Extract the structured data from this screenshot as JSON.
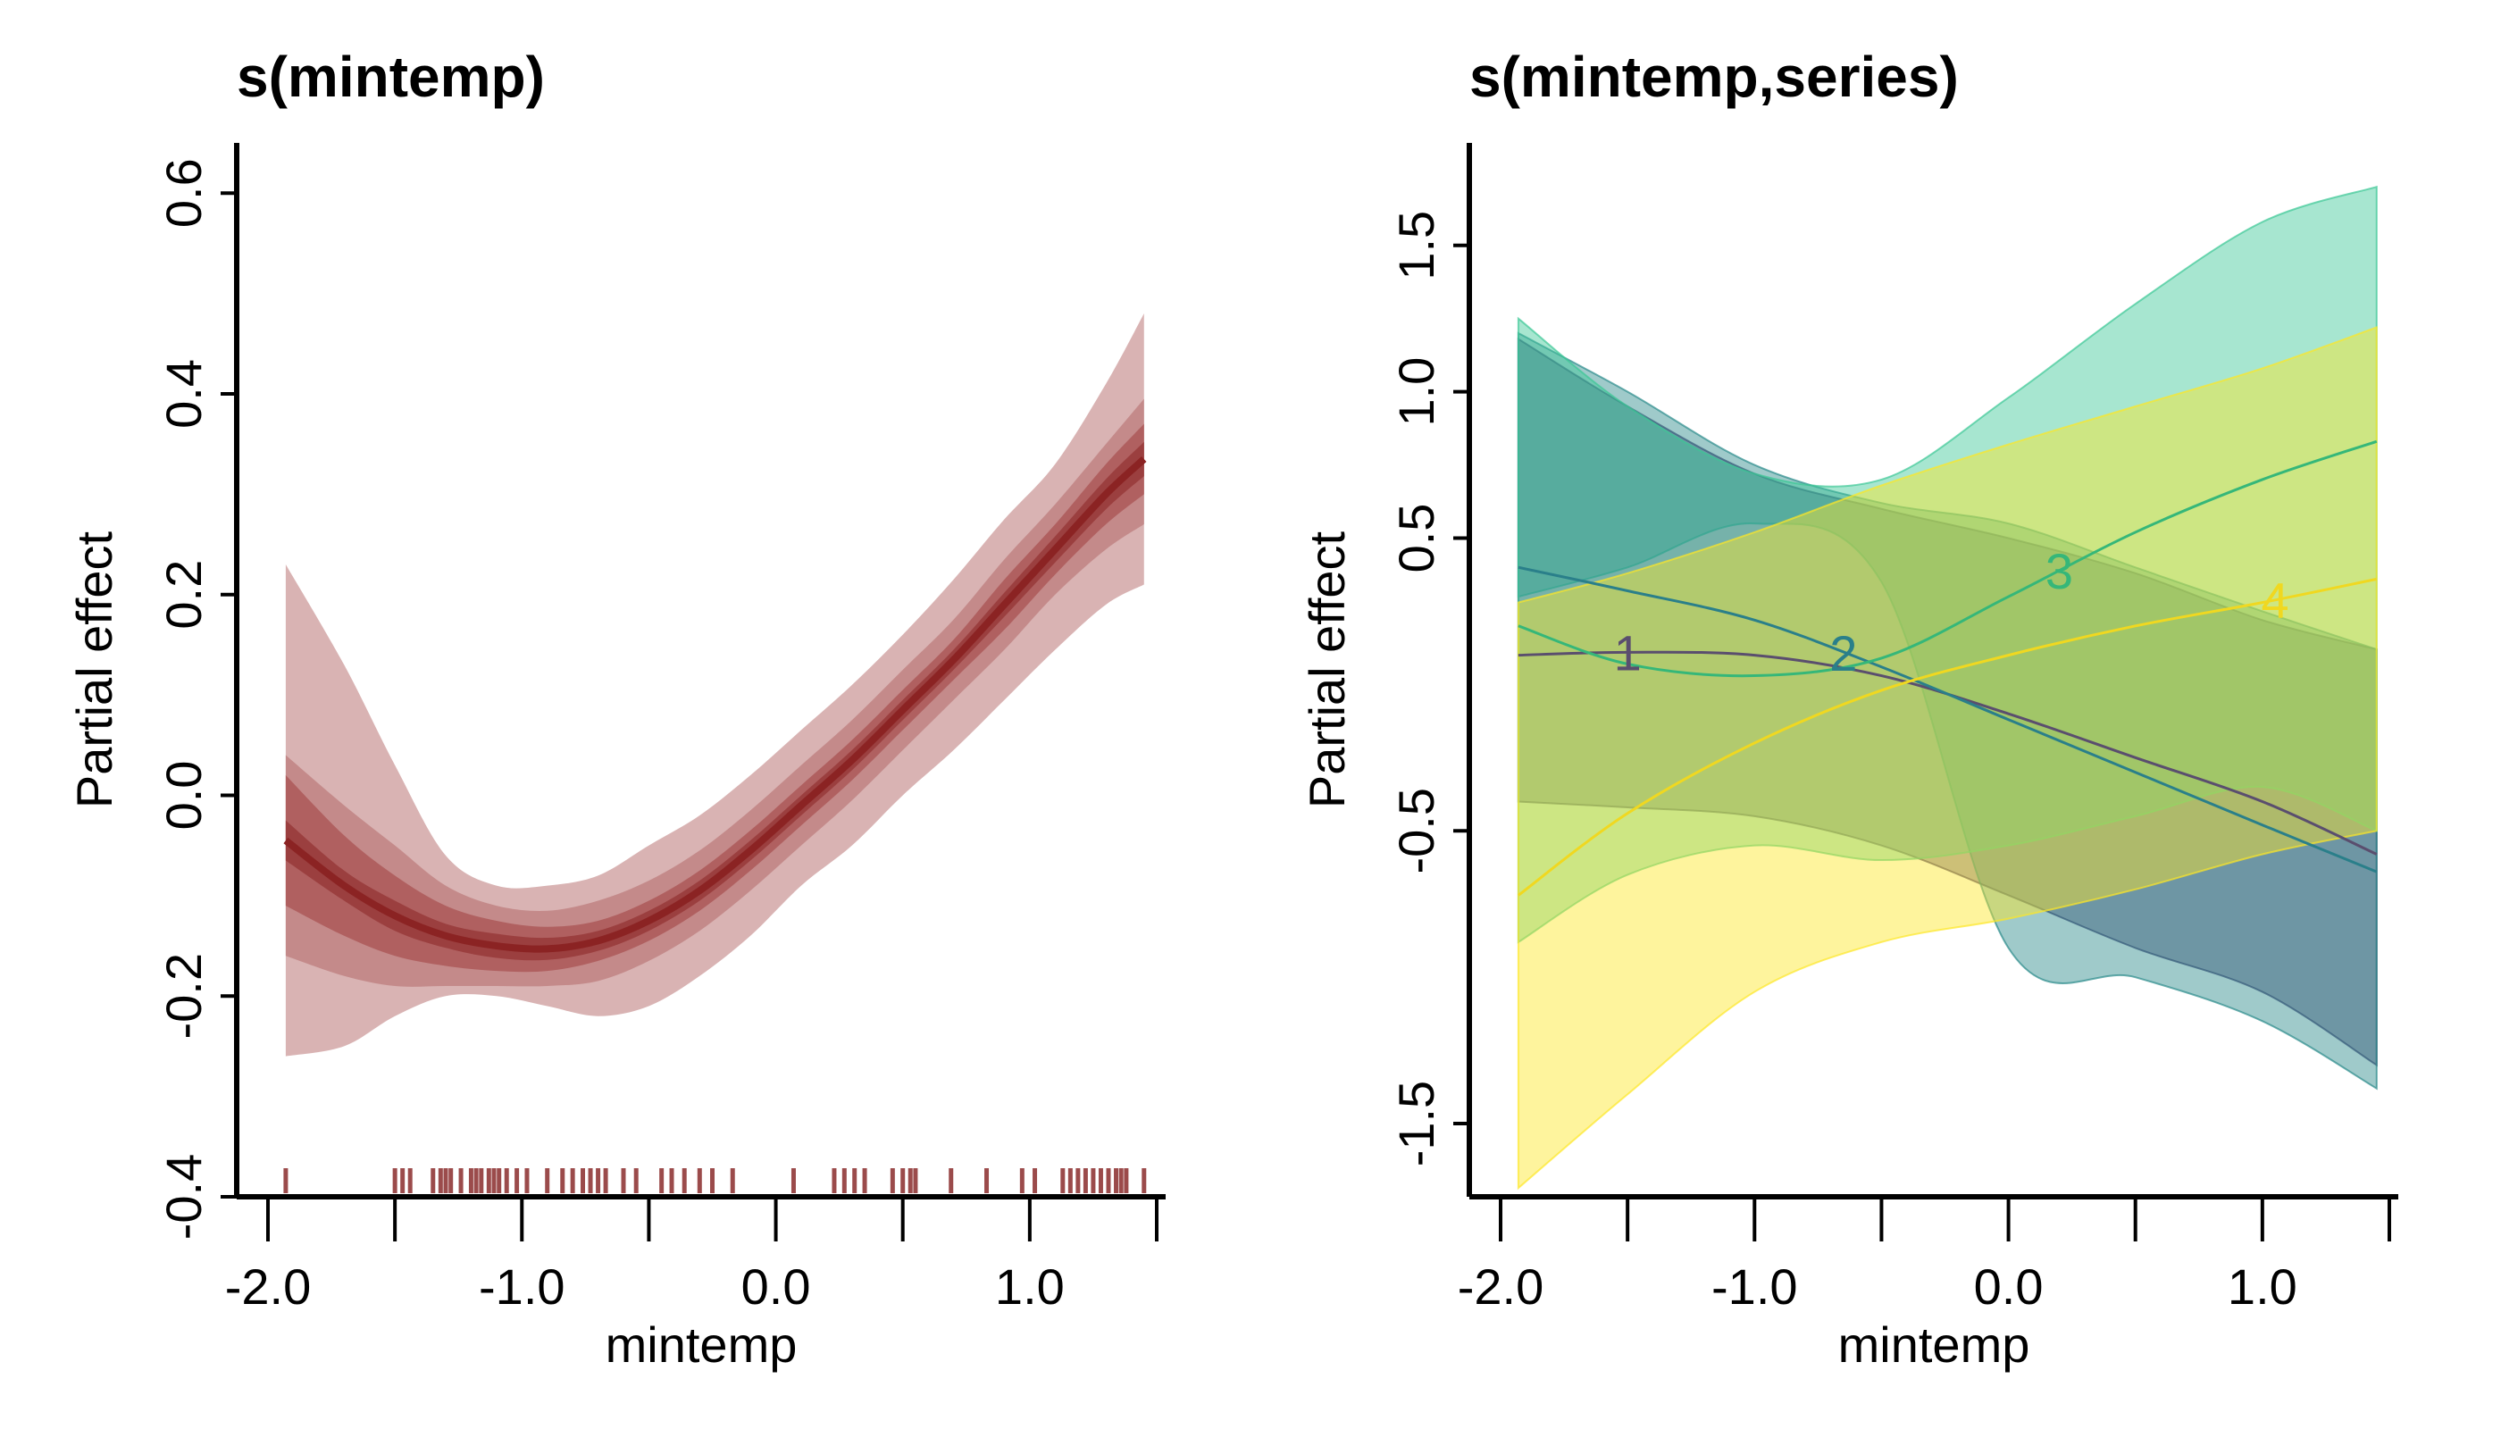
{
  "chart_data": [
    {
      "type": "line",
      "title": "s(mintemp)",
      "xlabel": "mintemp",
      "ylabel": "Partial effect",
      "xlim": [
        -2.0,
        1.5
      ],
      "ylim": [
        -0.4,
        0.65
      ],
      "x_ticks": [
        "-2.0",
        "-1.0",
        "0.0",
        "1.0"
      ],
      "y_ticks": [
        "-0.4",
        "-0.2",
        "0.0",
        "0.2",
        "0.4",
        "0.6"
      ],
      "colors": {
        "line": "#8b2323",
        "band_outer": "#d9b3b3",
        "band_mid": "#c48a8a",
        "band_inner": "#b06060",
        "band_core": "#9b3f3f",
        "rug": "#9b4b4b"
      },
      "x": [
        -1.93,
        -1.7,
        -1.5,
        -1.3,
        -1.1,
        -0.9,
        -0.7,
        -0.5,
        -0.3,
        -0.1,
        0.1,
        0.3,
        0.5,
        0.7,
        0.9,
        1.1,
        1.3,
        1.45
      ],
      "y": [
        -0.045,
        -0.09,
        -0.12,
        -0.14,
        -0.15,
        -0.153,
        -0.145,
        -0.125,
        -0.095,
        -0.055,
        -0.01,
        0.035,
        0.085,
        0.135,
        0.19,
        0.245,
        0.3,
        0.335
      ],
      "bands": [
        {
          "name": "outer",
          "lower": [
            -0.26,
            -0.25,
            -0.22,
            -0.2,
            -0.2,
            -0.21,
            -0.22,
            -0.21,
            -0.18,
            -0.14,
            -0.09,
            -0.05,
            0.0,
            0.045,
            0.095,
            0.145,
            0.19,
            0.21
          ],
          "upper": [
            0.23,
            0.13,
            0.03,
            -0.06,
            -0.09,
            -0.09,
            -0.08,
            -0.05,
            -0.02,
            0.02,
            0.065,
            0.11,
            0.16,
            0.215,
            0.275,
            0.33,
            0.41,
            0.48
          ]
        },
        {
          "name": "mid",
          "lower": [
            -0.16,
            -0.18,
            -0.19,
            -0.19,
            -0.19,
            -0.19,
            -0.185,
            -0.165,
            -0.135,
            -0.095,
            -0.05,
            -0.005,
            0.045,
            0.095,
            0.145,
            0.2,
            0.245,
            0.27
          ],
          "upper": [
            0.04,
            -0.01,
            -0.05,
            -0.09,
            -0.11,
            -0.115,
            -0.105,
            -0.085,
            -0.055,
            -0.015,
            0.03,
            0.075,
            0.125,
            0.175,
            0.235,
            0.29,
            0.35,
            0.395
          ]
        },
        {
          "name": "inner",
          "lower": [
            -0.11,
            -0.14,
            -0.16,
            -0.17,
            -0.175,
            -0.175,
            -0.165,
            -0.145,
            -0.115,
            -0.075,
            -0.03,
            0.015,
            0.065,
            0.115,
            0.165,
            0.22,
            0.27,
            0.3
          ]
        },
        {
          "name": "core",
          "lower": [
            -0.065,
            -0.105,
            -0.135,
            -0.152,
            -0.162,
            -0.164,
            -0.155,
            -0.135,
            -0.105,
            -0.065,
            -0.02,
            0.025,
            0.075,
            0.125,
            0.178,
            0.232,
            0.285,
            0.318
          ],
          "upper": [
            -0.025,
            -0.075,
            -0.105,
            -0.128,
            -0.138,
            -0.142,
            -0.135,
            -0.115,
            -0.085,
            -0.045,
            0.0,
            0.045,
            0.095,
            0.145,
            0.202,
            0.258,
            0.315,
            0.352
          ]
        }
      ],
      "rug": [
        -1.93,
        -1.5,
        -1.47,
        -1.44,
        -1.35,
        -1.32,
        -1.3,
        -1.28,
        -1.24,
        -1.2,
        -1.18,
        -1.16,
        -1.13,
        -1.11,
        -1.09,
        -1.06,
        -1.02,
        -0.98,
        -0.9,
        -0.84,
        -0.8,
        -0.76,
        -0.73,
        -0.7,
        -0.67,
        -0.6,
        -0.55,
        -0.45,
        -0.41,
        -0.36,
        -0.3,
        -0.25,
        -0.17,
        0.07,
        0.23,
        0.27,
        0.31,
        0.35,
        0.46,
        0.5,
        0.53,
        0.55,
        0.69,
        0.83,
        0.97,
        1.02,
        1.13,
        1.16,
        1.19,
        1.22,
        1.25,
        1.28,
        1.31,
        1.34,
        1.36,
        1.38,
        1.45
      ]
    },
    {
      "type": "line",
      "title": "s(mintemp,series)",
      "xlabel": "mintemp",
      "ylabel": "Partial effect",
      "xlim": [
        -2.0,
        1.5
      ],
      "ylim": [
        -1.75,
        1.85
      ],
      "x_ticks": [
        "-2.0",
        "-1.0",
        "0.0",
        "1.0"
      ],
      "y_ticks": [
        "-1.5",
        "-0.5",
        "0.5",
        "1.0",
        "1.5"
      ],
      "x": [
        -1.93,
        -1.5,
        -1.0,
        -0.5,
        0.0,
        0.5,
        1.0,
        1.45
      ],
      "series": [
        {
          "name": "1",
          "color": "#3b2f68",
          "line_color": "#5a4e6e",
          "y": [
            0.1,
            0.11,
            0.1,
            0.03,
            -0.1,
            -0.25,
            -0.4,
            -0.58
          ],
          "lower": [
            -0.4,
            -0.42,
            -0.45,
            -0.55,
            -0.72,
            -0.9,
            -1.05,
            -1.3
          ],
          "upper": [
            1.18,
            0.95,
            0.72,
            0.6,
            0.5,
            0.38,
            0.22,
            0.12
          ]
        },
        {
          "name": "2",
          "color": "#2a8a8a",
          "line_color": "#2a7f8a",
          "y": [
            0.4,
            0.32,
            0.22,
            0.06,
            -0.12,
            -0.3,
            -0.48,
            -0.64
          ],
          "lower": [
            0.3,
            0.4,
            0.55,
            0.35,
            -0.9,
            -1.0,
            -1.15,
            -1.38
          ],
          "upper": [
            1.2,
            1.0,
            0.75,
            0.62,
            0.55,
            0.4,
            0.25,
            0.12
          ]
        },
        {
          "name": "3",
          "color": "#3cc896",
          "line_color": "#35b779",
          "y": [
            0.2,
            0.07,
            0.03,
            0.09,
            0.3,
            0.52,
            0.7,
            0.83
          ],
          "lower": [
            -0.88,
            -0.65,
            -0.55,
            -0.6,
            -0.55,
            -0.45,
            -0.35,
            -0.5
          ],
          "upper": [
            1.25,
            0.95,
            0.72,
            0.7,
            0.98,
            1.3,
            1.58,
            1.7
          ]
        },
        {
          "name": "4",
          "color": "#fde725",
          "line_color": "#f0d820",
          "y": [
            -0.72,
            -0.44,
            -0.2,
            -0.02,
            0.1,
            0.2,
            0.28,
            0.36
          ],
          "lower": [
            -1.72,
            -1.4,
            -1.05,
            -0.88,
            -0.8,
            -0.7,
            -0.58,
            -0.5
          ],
          "upper": [
            0.28,
            0.38,
            0.52,
            0.68,
            0.82,
            0.95,
            1.08,
            1.22
          ]
        }
      ]
    }
  ]
}
